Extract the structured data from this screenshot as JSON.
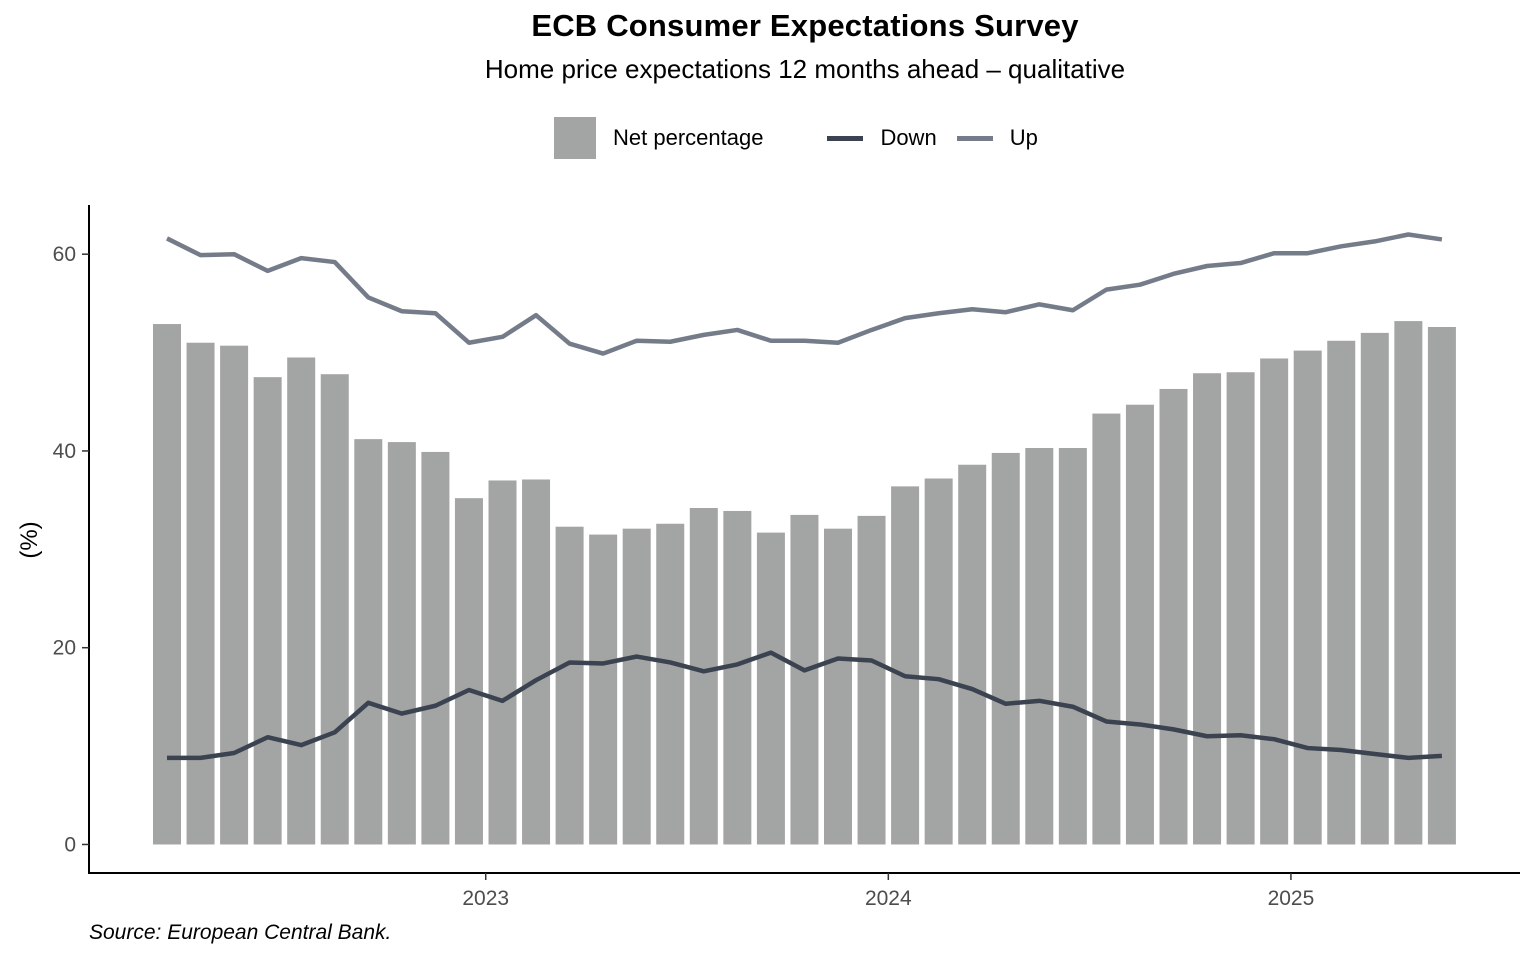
{
  "chart_data": {
    "type": "bar",
    "title": "ECB Consumer Expectations Survey",
    "subtitle": "Home price expectations 12 months ahead – qualitative",
    "ylabel": "(%)",
    "xlabel": "",
    "caption": "Source: European Central Bank.",
    "ylim": [
      -2.9,
      65
    ],
    "yticks": [
      0,
      20,
      40,
      60
    ],
    "xticks": [
      {
        "label": "2023",
        "month_index": 9.5
      },
      {
        "label": "2024",
        "month_index": 21.5
      },
      {
        "label": "2025",
        "month_index": 33.5
      }
    ],
    "categories": [
      "2022-04",
      "2022-05",
      "2022-06",
      "2022-07",
      "2022-08",
      "2022-09",
      "2022-10",
      "2022-11",
      "2022-12",
      "2023-01",
      "2023-02",
      "2023-03",
      "2023-04",
      "2023-05",
      "2023-06",
      "2023-07",
      "2023-08",
      "2023-09",
      "2023-10",
      "2023-11",
      "2023-12",
      "2024-01",
      "2024-02",
      "2024-03",
      "2024-04",
      "2024-05",
      "2024-06",
      "2024-07",
      "2024-08",
      "2024-09",
      "2024-10",
      "2024-11",
      "2024-12",
      "2025-01",
      "2025-02",
      "2025-03",
      "2025-04",
      "2025-05",
      "2025-06"
    ],
    "legend_position": "top",
    "grid": false,
    "series": [
      {
        "name": "Net percentage",
        "kind": "bar",
        "color": "#a3a4a4",
        "values": [
          52.9,
          51.0,
          50.7,
          47.5,
          49.5,
          47.8,
          41.2,
          40.9,
          39.9,
          35.2,
          37.0,
          37.1,
          32.3,
          31.5,
          32.1,
          32.6,
          34.2,
          33.9,
          31.7,
          33.5,
          32.1,
          33.4,
          36.4,
          37.2,
          38.6,
          39.8,
          40.3,
          40.3,
          43.8,
          44.7,
          46.3,
          47.9,
          48.0,
          49.4,
          50.2,
          51.2,
          52.0,
          53.2,
          52.6
        ]
      },
      {
        "name": "Down",
        "kind": "line",
        "color": "#3b4350",
        "values": [
          8.8,
          8.8,
          9.3,
          10.9,
          10.1,
          11.4,
          14.4,
          13.3,
          14.1,
          15.7,
          14.6,
          16.7,
          18.5,
          18.4,
          19.1,
          18.5,
          17.6,
          18.3,
          19.5,
          17.7,
          18.9,
          18.7,
          17.1,
          16.8,
          15.8,
          14.3,
          14.6,
          14.0,
          12.5,
          12.2,
          11.7,
          11.0,
          11.1,
          10.7,
          9.8,
          9.6,
          9.2,
          8.8,
          9.0
        ]
      },
      {
        "name": "Up",
        "kind": "line",
        "color": "#757c89",
        "values": [
          61.6,
          59.9,
          60.0,
          58.3,
          59.6,
          59.2,
          55.6,
          54.2,
          54.0,
          51.0,
          51.6,
          53.8,
          50.9,
          49.9,
          51.2,
          51.1,
          51.8,
          52.3,
          51.2,
          51.2,
          51.0,
          52.3,
          53.5,
          54.0,
          54.4,
          54.1,
          54.9,
          54.3,
          56.4,
          56.9,
          58.0,
          58.8,
          59.1,
          60.1,
          60.1,
          60.8,
          61.3,
          62.0,
          61.5
        ]
      }
    ]
  }
}
